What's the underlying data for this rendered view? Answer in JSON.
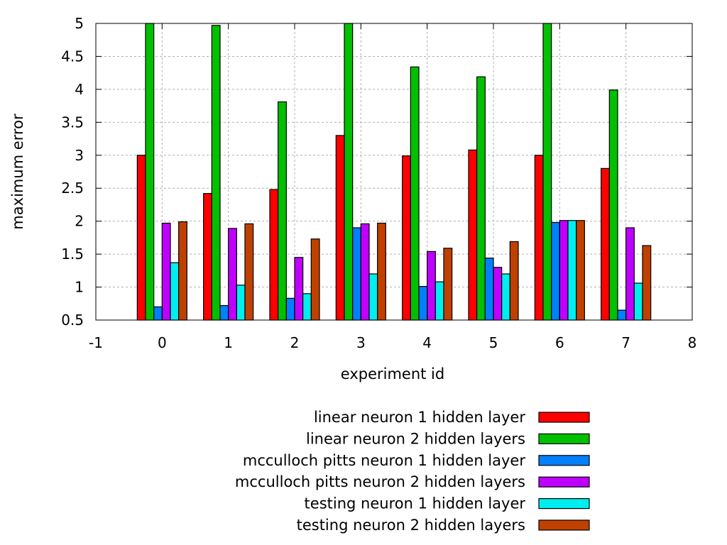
{
  "chart_data": {
    "type": "bar",
    "title": "",
    "xlabel": "experiment id",
    "ylabel": "maximum error",
    "xlim": [
      -1,
      8
    ],
    "ylim": [
      0.5,
      5
    ],
    "xticks": [
      "-1",
      "0",
      "1",
      "2",
      "3",
      "4",
      "5",
      "6",
      "7",
      "8"
    ],
    "yticks": [
      "0.5",
      "1",
      "1.5",
      "2",
      "2.5",
      "3",
      "3.5",
      "4",
      "4.5",
      "5"
    ],
    "grid": true,
    "legend_position": "bottom",
    "categories": [
      0,
      1,
      2,
      3,
      4,
      5,
      6,
      7
    ],
    "series": [
      {
        "name": "linear neuron 1 hidden layer",
        "color": "#ff0000",
        "values": [
          3.0,
          2.42,
          2.48,
          3.3,
          2.99,
          3.08,
          3.0,
          2.8
        ]
      },
      {
        "name": "linear neuron 2 hidden layers",
        "color": "#00c000",
        "values": [
          5.0,
          4.97,
          3.81,
          5.0,
          4.34,
          4.19,
          5.0,
          3.99
        ]
      },
      {
        "name": "mcculloch pitts neuron 1 hidden layer",
        "color": "#0080ff",
        "values": [
          0.7,
          0.72,
          0.83,
          1.9,
          1.01,
          1.44,
          1.98,
          0.65
        ]
      },
      {
        "name": "mcculloch pitts neuron 2 hidden layers",
        "color": "#c000ff",
        "values": [
          1.97,
          1.89,
          1.45,
          1.96,
          1.54,
          1.3,
          2.01,
          1.9
        ]
      },
      {
        "name": "testing neuron 1 hidden layer",
        "color": "#00eeee",
        "values": [
          1.37,
          1.03,
          0.9,
          1.2,
          1.08,
          1.2,
          2.01,
          1.06
        ]
      },
      {
        "name": "testing neuron 2 hidden layers",
        "color": "#c04000",
        "values": [
          1.99,
          1.96,
          1.73,
          1.97,
          1.59,
          1.69,
          2.01,
          1.63
        ]
      }
    ]
  }
}
